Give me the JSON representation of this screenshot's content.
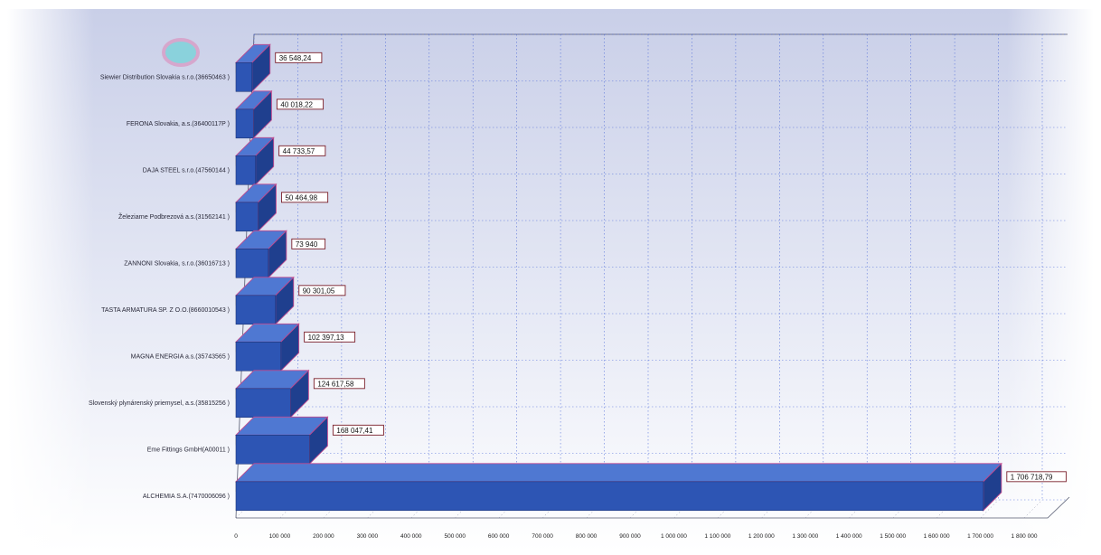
{
  "chart_data": {
    "type": "bar",
    "orientation": "horizontal",
    "categories": [
      "Siewier Distribution Slovakia s.r.o.(36650463   )",
      "FERONA Slovakia, a.s.(36400117P   )",
      "DAJA STEEL s.r.o.(47560144   )",
      "Železiarne Podbrezová a.s.(31562141   )",
      "ZANNONI Slovakia, s.r.o.(36016713   )",
      "TASTA ARMATURA SP. Z O.O.(8660010543 )",
      "MAGNA ENERGIA a.s.(35743565   )",
      "Slovenský plynárenský priemysel, a.s.(35815256   )",
      "Eme Fittings GmbH(A00011   )",
      "ALCHEMIA S.A.(7470006096 )"
    ],
    "values": [
      36548.24,
      40018.22,
      44733.57,
      50464.98,
      73940,
      90301.05,
      102397.13,
      124617.58,
      168047.41,
      1706718.79
    ],
    "value_labels": [
      "36 548,24",
      "40 018,22",
      "44 733,57",
      "50 464,98",
      "73 940",
      "90 301,05",
      "102 397,13",
      "124 617,58",
      "168 047,41",
      "1 706 718,79"
    ],
    "xlim": [
      0,
      1800000
    ],
    "x_ticks": [
      0,
      100000,
      200000,
      300000,
      400000,
      500000,
      600000,
      700000,
      800000,
      900000,
      1000000,
      1100000,
      1200000,
      1300000,
      1400000,
      1500000,
      1600000,
      1700000,
      1800000
    ],
    "x_tick_labels": [
      "0",
      "100 000",
      "200 000",
      "300 000",
      "400 000",
      "500 000",
      "600 000",
      "700 000",
      "800 000",
      "900 000",
      "1 000 000",
      "1 100 000",
      "1 200 000",
      "1 300 000",
      "1 400 000",
      "1 500 000",
      "1 600 000",
      "1 700 000",
      "1 800 000"
    ],
    "title": "",
    "xlabel": "",
    "ylabel": "",
    "grid": true,
    "legend": "none",
    "style": "3d",
    "colors": {
      "bar_front": "#2d55b4",
      "bar_top": "#4f78d2",
      "bar_side": "#1f3f8e",
      "bar_outline": "#c04a8f",
      "bar_cap": "#f2e6a0",
      "gridline": "#3b5bd6",
      "background_top": "#d3d8ec",
      "background_bottom": "#ffffff"
    }
  }
}
